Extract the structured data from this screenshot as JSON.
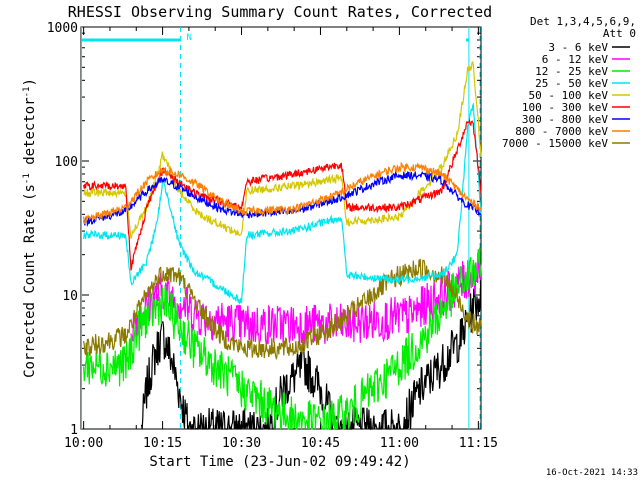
{
  "chart_data": {
    "type": "line",
    "title": "RHESSI Observing Summary Count Rates, Corrected",
    "xlabel": "Start Time (23-Jun-02 09:49:42)",
    "ylabel_main": "Corrected Count Rate (s",
    "ylabel_sup1": "-1",
    "ylabel_mid": " detector",
    "ylabel_sup2": "-1",
    "ylabel_end": ")",
    "yscale": "log",
    "ylim": [
      1,
      1000
    ],
    "xlim_minutes": [
      9.5,
      85.5
    ],
    "x_ticks": [
      {
        "m": 10,
        "label": "10:00"
      },
      {
        "m": 25,
        "label": "10:15"
      },
      {
        "m": 40,
        "label": "10:30"
      },
      {
        "m": 55,
        "label": "10:45"
      },
      {
        "m": 70,
        "label": "11:00"
      },
      {
        "m": 85,
        "label": "11:15"
      }
    ],
    "y_tick_labels": [
      {
        "v": 1000,
        "label": "1000"
      },
      {
        "v": 100,
        "label": "100"
      },
      {
        "v": 10,
        "label": "10"
      },
      {
        "v": 1,
        "label": "1"
      }
    ],
    "legend": {
      "header": [
        "Det 1,3,4,5,6,9,",
        "Att 0"
      ],
      "placement": "right"
    },
    "night_flag": {
      "label": "N",
      "color": "#00e5ee",
      "level": 800,
      "segments": [
        [
          9.5,
          28.4
        ],
        [
          83.2,
          95.3
        ]
      ]
    },
    "dashed_markers": [
      28.4,
      95.3
    ],
    "solid_markers": [
      9.6,
      83.2
    ],
    "series": [
      {
        "name": "3 - 6 keV",
        "color": "#000000",
        "points": [
          [
            21,
            1
          ],
          [
            22,
            2
          ],
          [
            23,
            3
          ],
          [
            24,
            4
          ],
          [
            25,
            5
          ],
          [
            26,
            4
          ],
          [
            27,
            3
          ],
          [
            28,
            2
          ],
          [
            30,
            1
          ],
          [
            45,
            1
          ],
          [
            48,
            2
          ],
          [
            52,
            3
          ],
          [
            55,
            2
          ],
          [
            58,
            1
          ],
          [
            70,
            1
          ],
          [
            74,
            2
          ],
          [
            78,
            3
          ],
          [
            82,
            5
          ],
          [
            84,
            8
          ],
          [
            86,
            11
          ],
          [
            88,
            6
          ],
          [
            89,
            3
          ],
          [
            90,
            1
          ]
        ]
      },
      {
        "name": "6 - 12 keV",
        "color": "#ff00ff",
        "points": [
          [
            19,
            6
          ],
          [
            22,
            8
          ],
          [
            24,
            10
          ],
          [
            25,
            11
          ],
          [
            26,
            10
          ],
          [
            28,
            9
          ],
          [
            32,
            7
          ],
          [
            40,
            6
          ],
          [
            60,
            6
          ],
          [
            72,
            7
          ],
          [
            76,
            9
          ],
          [
            80,
            11
          ],
          [
            84,
            14
          ],
          [
            86,
            15
          ],
          [
            87,
            12
          ],
          [
            88,
            8
          ],
          [
            89,
            4
          ],
          [
            90,
            2
          ]
        ]
      },
      {
        "name": "12 - 25 keV",
        "color": "#00ee00",
        "points": [
          [
            10,
            3
          ],
          [
            18,
            3
          ],
          [
            20,
            5
          ],
          [
            22,
            7
          ],
          [
            24,
            8
          ],
          [
            25,
            9
          ],
          [
            26,
            8
          ],
          [
            28,
            6
          ],
          [
            31,
            4
          ],
          [
            35,
            3
          ],
          [
            40,
            2
          ],
          [
            45,
            1.5
          ],
          [
            50,
            1.2
          ],
          [
            55,
            1.1
          ],
          [
            60,
            1.3
          ],
          [
            65,
            2
          ],
          [
            70,
            3
          ],
          [
            75,
            5
          ],
          [
            80,
            10
          ],
          [
            84,
            15
          ],
          [
            86,
            16
          ],
          [
            87,
            10
          ],
          [
            88,
            5
          ],
          [
            90,
            3
          ],
          [
            95,
            3
          ]
        ]
      },
      {
        "name": "25 - 50 keV",
        "color": "#00e5ee",
        "points": [
          [
            10,
            28
          ],
          [
            18,
            28
          ],
          [
            19,
            12
          ],
          [
            22,
            18
          ],
          [
            24,
            35
          ],
          [
            25,
            70
          ],
          [
            26,
            55
          ],
          [
            28,
            25
          ],
          [
            31,
            15
          ],
          [
            35,
            12
          ],
          [
            40,
            9
          ],
          [
            41,
            28
          ],
          [
            50,
            30
          ],
          [
            59,
            38
          ],
          [
            60,
            14
          ],
          [
            70,
            13
          ],
          [
            78,
            14
          ],
          [
            81,
            20
          ],
          [
            82,
            60
          ],
          [
            83,
            180
          ],
          [
            84,
            260
          ],
          [
            85,
            80
          ],
          [
            86,
            20
          ],
          [
            89,
            16
          ],
          [
            92,
            28
          ],
          [
            95,
            28
          ]
        ]
      },
      {
        "name": "50 - 100 keV",
        "color": "#d4c800",
        "points": [
          [
            10,
            58
          ],
          [
            18,
            58
          ],
          [
            19,
            28
          ],
          [
            22,
            45
          ],
          [
            24,
            80
          ],
          [
            25,
            110
          ],
          [
            26,
            95
          ],
          [
            28,
            60
          ],
          [
            32,
            40
          ],
          [
            40,
            28
          ],
          [
            41,
            60
          ],
          [
            50,
            65
          ],
          [
            59,
            75
          ],
          [
            60,
            35
          ],
          [
            70,
            38
          ],
          [
            78,
            90
          ],
          [
            81,
            160
          ],
          [
            83,
            480
          ],
          [
            84,
            520
          ],
          [
            85,
            200
          ],
          [
            86,
            50
          ],
          [
            88,
            35
          ],
          [
            92,
            55
          ],
          [
            95,
            55
          ]
        ]
      },
      {
        "name": "100 - 300 keV",
        "color": "#ff0000",
        "points": [
          [
            10,
            65
          ],
          [
            18,
            65
          ],
          [
            19,
            16
          ],
          [
            22,
            45
          ],
          [
            24,
            70
          ],
          [
            25,
            85
          ],
          [
            26,
            80
          ],
          [
            28,
            70
          ],
          [
            32,
            55
          ],
          [
            40,
            45
          ],
          [
            41,
            70
          ],
          [
            50,
            80
          ],
          [
            59,
            95
          ],
          [
            60,
            45
          ],
          [
            70,
            45
          ],
          [
            78,
            60
          ],
          [
            81,
            120
          ],
          [
            83,
            200
          ],
          [
            84,
            190
          ],
          [
            85,
            90
          ],
          [
            86,
            40
          ],
          [
            88,
            20
          ],
          [
            92,
            60
          ],
          [
            95,
            60
          ]
        ]
      },
      {
        "name": "300 - 800 keV",
        "color": "#0000ff",
        "points": [
          [
            10,
            35
          ],
          [
            18,
            42
          ],
          [
            22,
            60
          ],
          [
            25,
            72
          ],
          [
            28,
            64
          ],
          [
            32,
            52
          ],
          [
            36,
            44
          ],
          [
            40,
            40
          ],
          [
            50,
            42
          ],
          [
            58,
            52
          ],
          [
            62,
            60
          ],
          [
            66,
            70
          ],
          [
            70,
            78
          ],
          [
            74,
            78
          ],
          [
            78,
            72
          ],
          [
            80,
            60
          ],
          [
            82,
            50
          ],
          [
            84,
            44
          ],
          [
            88,
            38
          ],
          [
            92,
            34
          ],
          [
            95,
            33
          ]
        ]
      },
      {
        "name": "800 - 7000 keV",
        "color": "#ff7f00",
        "points": [
          [
            10,
            36
          ],
          [
            18,
            45
          ],
          [
            22,
            70
          ],
          [
            25,
            86
          ],
          [
            28,
            80
          ],
          [
            32,
            65
          ],
          [
            36,
            50
          ],
          [
            40,
            42
          ],
          [
            50,
            44
          ],
          [
            58,
            56
          ],
          [
            62,
            68
          ],
          [
            66,
            80
          ],
          [
            70,
            90
          ],
          [
            74,
            90
          ],
          [
            78,
            80
          ],
          [
            80,
            68
          ],
          [
            82,
            56
          ],
          [
            84,
            48
          ],
          [
            88,
            40
          ],
          [
            92,
            35
          ],
          [
            95,
            33
          ]
        ]
      },
      {
        "name": "7000 - 15000 keV",
        "color": "#8b7a00",
        "points": [
          [
            10,
            4
          ],
          [
            18,
            5
          ],
          [
            22,
            10
          ],
          [
            25,
            15
          ],
          [
            28,
            14
          ],
          [
            32,
            8
          ],
          [
            36,
            5
          ],
          [
            40,
            4
          ],
          [
            50,
            4
          ],
          [
            58,
            6
          ],
          [
            62,
            8
          ],
          [
            66,
            11
          ],
          [
            70,
            14
          ],
          [
            74,
            16
          ],
          [
            78,
            14
          ],
          [
            80,
            11
          ],
          [
            82,
            8
          ],
          [
            84,
            6
          ],
          [
            88,
            5
          ],
          [
            92,
            4
          ],
          [
            95,
            4
          ]
        ]
      }
    ]
  },
  "timestamp": "16-Oct-2021 14:33"
}
